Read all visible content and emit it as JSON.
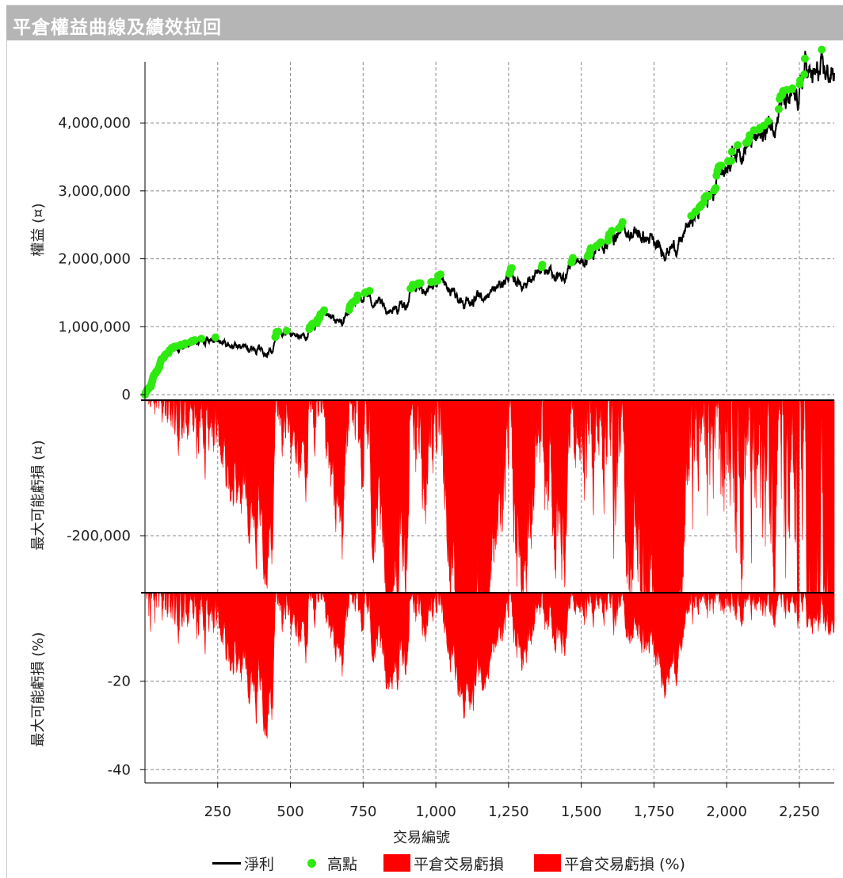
{
  "window": {
    "title": "平倉權益曲線及績效拉回"
  },
  "colors": {
    "equity": "#000000",
    "peaks": "#2eea10",
    "drawdown": "#ff0000",
    "grid": "#8a8a8a"
  },
  "chart_data": [
    {
      "type": "line",
      "ylabel": "權益 (¤)",
      "ylim": [
        0,
        4900000
      ],
      "yticks": [
        0,
        1000000,
        2000000,
        3000000,
        4000000
      ],
      "ytick_labels": [
        "0",
        "1,000,000",
        "2,000,000",
        "3,000,000",
        "4,000,000"
      ],
      "grid": true,
      "anchors": [
        [
          0,
          0
        ],
        [
          20,
          150000
        ],
        [
          60,
          520000
        ],
        [
          100,
          660000
        ],
        [
          150,
          720000
        ],
        [
          230,
          860000
        ],
        [
          260,
          780000
        ],
        [
          300,
          720000
        ],
        [
          380,
          700000
        ],
        [
          440,
          640000
        ],
        [
          455,
          940000
        ],
        [
          500,
          860000
        ],
        [
          560,
          870000
        ],
        [
          600,
          1130000
        ],
        [
          680,
          1050000
        ],
        [
          700,
          1250000
        ],
        [
          760,
          1480000
        ],
        [
          820,
          1250000
        ],
        [
          860,
          1270000
        ],
        [
          900,
          1320000
        ],
        [
          920,
          1600000
        ],
        [
          960,
          1550000
        ],
        [
          1000,
          1680000
        ],
        [
          1040,
          1560000
        ],
        [
          1080,
          1420000
        ],
        [
          1120,
          1360000
        ],
        [
          1200,
          1520000
        ],
        [
          1250,
          1750000
        ],
        [
          1300,
          1640000
        ],
        [
          1360,
          1760000
        ],
        [
          1380,
          1800000
        ],
        [
          1440,
          1720000
        ],
        [
          1470,
          2000000
        ],
        [
          1500,
          1920000
        ],
        [
          1540,
          2100000
        ],
        [
          1600,
          2300000
        ],
        [
          1640,
          2430000
        ],
        [
          1700,
          2350000
        ],
        [
          1740,
          2260000
        ],
        [
          1760,
          2120000
        ],
        [
          1820,
          2180000
        ],
        [
          1840,
          2220000
        ],
        [
          1870,
          2500000
        ],
        [
          1900,
          2680000
        ],
        [
          1930,
          2850000
        ],
        [
          1960,
          3000000
        ],
        [
          1970,
          3500000
        ],
        [
          1985,
          3250000
        ],
        [
          2020,
          3600000
        ],
        [
          2080,
          3700000
        ],
        [
          2120,
          3800000
        ],
        [
          2170,
          4100000
        ],
        [
          2185,
          4400000
        ],
        [
          2200,
          4250000
        ],
        [
          2240,
          4300000
        ],
        [
          2265,
          4650000
        ],
        [
          2270,
          4850000
        ],
        [
          2290,
          4650000
        ],
        [
          2320,
          4700000
        ],
        [
          2360,
          4720000
        ]
      ],
      "series": [
        {
          "name": "淨利",
          "kind": "equity_line"
        },
        {
          "name": "高點",
          "kind": "new_high_markers"
        }
      ]
    },
    {
      "type": "area",
      "ylabel": "最大可能虧損 (¤)",
      "ylim": [
        -283000,
        0
      ],
      "yticks": [
        -200000
      ],
      "ytick_labels": [
        "-200,000"
      ],
      "grid": true,
      "series": [
        {
          "name": "平倉交易虧損",
          "kind": "drawdown_amount"
        }
      ]
    },
    {
      "type": "area",
      "ylabel": "最大可能虧損 (%)",
      "ylim": [
        -43,
        0
      ],
      "yticks": [
        -20,
        -40
      ],
      "ytick_labels": [
        "-20",
        "-40"
      ],
      "grid": true,
      "series": [
        {
          "name": "平倉交易虧損 (%)",
          "kind": "drawdown_percent"
        }
      ]
    }
  ],
  "x_axis": {
    "label": "交易編號",
    "xlim": [
      0,
      2370
    ],
    "ticks": [
      250,
      500,
      750,
      1000,
      1250,
      1500,
      1750,
      2000,
      2250
    ],
    "tick_labels": [
      "250",
      "500",
      "750",
      "1,000",
      "1,250",
      "1,500",
      "1,750",
      "2,000",
      "2,250"
    ]
  },
  "legend": {
    "equity": "淨利",
    "peaks": "高點",
    "drawdown": "平倉交易虧損",
    "drawdown_pct": "平倉交易虧損 (%)"
  }
}
